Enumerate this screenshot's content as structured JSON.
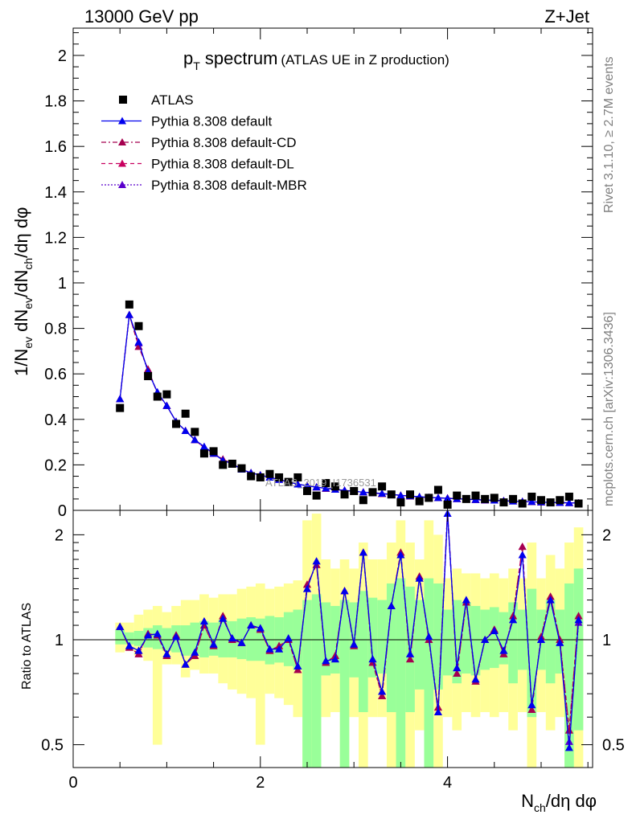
{
  "header": {
    "left": "13000 GeV pp",
    "right": "Z+Jet"
  },
  "side_labels": {
    "rivet": "Rivet 3.1.10, ≥ 2.7M events",
    "mcplots": "mcplots.cern.ch [arXiv:1306.3436]"
  },
  "watermark": "ATLAS_2019_I1736531",
  "chart_data": [
    {
      "type": "scatter",
      "title_main": "p",
      "title_sub": "T",
      "title_rest": " spectrum",
      "title_paren": "(ATLAS UE in Z production)",
      "ylabel": "1/N_ev dN_ev/dN_ch/dη dφ",
      "xlim": [
        0,
        5.55
      ],
      "ylim": [
        0,
        2.12
      ],
      "y_ticks": [
        0,
        0.2,
        0.4,
        0.6,
        0.8,
        1,
        1.2,
        1.4,
        1.6,
        1.8,
        2
      ],
      "y_tick_labels": [
        "0",
        "0.2",
        "0.4",
        "0.6",
        "0.8",
        "1",
        "1.2",
        "1.4",
        "1.6",
        "1.8",
        "2"
      ],
      "legend_position": "top-left",
      "legend": [
        {
          "label": "ATLAS",
          "style": "data"
        },
        {
          "label": "Pythia 8.308 default",
          "style": "solid",
          "color": "#0000ee"
        },
        {
          "label": "Pythia 8.308 default-CD",
          "style": "dashdot",
          "color": "#a5004f"
        },
        {
          "label": "Pythia 8.308 default-DL",
          "style": "dashed",
          "color": "#c8005f"
        },
        {
          "label": "Pythia 8.308 default-MBR",
          "style": "dotted",
          "color": "#5a00cc"
        }
      ],
      "x": [
        0.5,
        0.6,
        0.7,
        0.8,
        0.9,
        1.0,
        1.1,
        1.2,
        1.3,
        1.4,
        1.5,
        1.6,
        1.7,
        1.8,
        1.9,
        2.0,
        2.1,
        2.2,
        2.3,
        2.4,
        2.5,
        2.6,
        2.7,
        2.8,
        2.9,
        3.0,
        3.1,
        3.2,
        3.3,
        3.4,
        3.5,
        3.6,
        3.7,
        3.8,
        3.9,
        4.0,
        4.1,
        4.2,
        4.3,
        4.4,
        4.5,
        4.6,
        4.7,
        4.8,
        4.9,
        5.0,
        5.1,
        5.2,
        5.3,
        5.4
      ],
      "data_values": [
        0.45,
        0.905,
        0.81,
        0.59,
        0.5,
        0.51,
        0.38,
        0.425,
        0.345,
        0.25,
        0.26,
        0.2,
        0.205,
        0.185,
        0.15,
        0.145,
        0.16,
        0.145,
        0.125,
        0.145,
        0.085,
        0.065,
        0.12,
        0.105,
        0.07,
        0.085,
        0.045,
        0.08,
        0.105,
        0.07,
        0.035,
        0.07,
        0.04,
        0.055,
        0.09,
        0.025,
        0.065,
        0.05,
        0.065,
        0.05,
        0.055,
        0.035,
        0.05,
        0.03,
        0.06,
        0.045,
        0.035,
        0.045,
        0.06,
        0.03
      ],
      "series": [
        {
          "name": "Pythia 8.308 default",
          "values": [
            0.49,
            0.86,
            0.74,
            0.61,
            0.52,
            0.46,
            0.39,
            0.35,
            0.31,
            0.28,
            0.25,
            0.22,
            0.205,
            0.18,
            0.165,
            0.155,
            0.145,
            0.135,
            0.125,
            0.115,
            0.108,
            0.102,
            0.097,
            0.092,
            0.088,
            0.084,
            0.08,
            0.077,
            0.074,
            0.07,
            0.066,
            0.063,
            0.06,
            0.057,
            0.055,
            0.053,
            0.051,
            0.049,
            0.047,
            0.045,
            0.044,
            0.042,
            0.04,
            0.039,
            0.038,
            0.036,
            0.035,
            0.034,
            0.033,
            0.032
          ]
        },
        {
          "name": "Pythia 8.308 default-CD",
          "values": [
            0.49,
            0.86,
            0.72,
            0.62,
            0.515,
            0.46,
            0.39,
            0.35,
            0.31,
            0.275,
            0.25,
            0.225,
            0.205,
            0.18,
            0.165,
            0.155,
            0.145,
            0.136,
            0.124,
            0.115,
            0.109,
            0.102,
            0.096,
            0.092,
            0.088,
            0.083,
            0.08,
            0.076,
            0.073,
            0.07,
            0.066,
            0.062,
            0.059,
            0.056,
            0.055,
            0.054,
            0.051,
            0.049,
            0.047,
            0.045,
            0.044,
            0.042,
            0.041,
            0.039,
            0.037,
            0.036,
            0.035,
            0.034,
            0.033,
            0.032
          ]
        },
        {
          "name": "Pythia 8.308 default-DL",
          "values": [
            0.49,
            0.86,
            0.72,
            0.62,
            0.515,
            0.46,
            0.39,
            0.35,
            0.31,
            0.275,
            0.25,
            0.225,
            0.205,
            0.18,
            0.165,
            0.155,
            0.145,
            0.136,
            0.124,
            0.115,
            0.109,
            0.102,
            0.096,
            0.092,
            0.088,
            0.083,
            0.08,
            0.076,
            0.073,
            0.07,
            0.066,
            0.062,
            0.059,
            0.056,
            0.055,
            0.054,
            0.051,
            0.049,
            0.047,
            0.045,
            0.044,
            0.042,
            0.041,
            0.039,
            0.037,
            0.036,
            0.035,
            0.034,
            0.033,
            0.032
          ]
        },
        {
          "name": "Pythia 8.308 default-MBR",
          "values": [
            0.49,
            0.86,
            0.735,
            0.61,
            0.52,
            0.46,
            0.39,
            0.35,
            0.31,
            0.28,
            0.25,
            0.222,
            0.205,
            0.18,
            0.165,
            0.155,
            0.145,
            0.135,
            0.125,
            0.115,
            0.108,
            0.102,
            0.097,
            0.092,
            0.088,
            0.084,
            0.08,
            0.077,
            0.074,
            0.07,
            0.066,
            0.063,
            0.06,
            0.057,
            0.055,
            0.053,
            0.051,
            0.049,
            0.047,
            0.045,
            0.044,
            0.042,
            0.04,
            0.039,
            0.038,
            0.036,
            0.035,
            0.034,
            0.033,
            0.032
          ]
        }
      ]
    },
    {
      "type": "line",
      "ylabel": "Ratio to ATLAS",
      "xlabel": "N_ch/dη dφ",
      "y_scale": "log",
      "xlim": [
        0,
        5.55
      ],
      "ylim": [
        0.43,
        2.35
      ],
      "x_ticks": [
        0,
        2,
        4
      ],
      "x_tick_labels": [
        "0",
        "2",
        "4"
      ],
      "y_ticks": [
        0.5,
        1,
        2
      ],
      "y_tick_labels": [
        "0.5",
        "1",
        "2"
      ],
      "x": [
        0.5,
        0.6,
        0.7,
        0.8,
        0.9,
        1.0,
        1.1,
        1.2,
        1.3,
        1.4,
        1.5,
        1.6,
        1.7,
        1.8,
        1.9,
        2.0,
        2.1,
        2.2,
        2.3,
        2.4,
        2.5,
        2.6,
        2.7,
        2.8,
        2.9,
        3.0,
        3.1,
        3.2,
        3.3,
        3.4,
        3.5,
        3.6,
        3.7,
        3.8,
        3.9,
        4.0,
        4.1,
        4.2,
        4.3,
        4.4,
        4.5,
        4.6,
        4.7,
        4.8,
        4.9,
        5.0,
        5.1,
        5.2,
        5.3,
        5.4
      ],
      "band_green": [
        [
          0.97,
          1.07
        ],
        [
          0.97,
          1.05
        ],
        [
          0.96,
          1.06
        ],
        [
          0.95,
          1.08
        ],
        [
          0.94,
          1.1
        ],
        [
          0.93,
          1.08
        ],
        [
          0.92,
          1.1
        ],
        [
          0.9,
          1.1
        ],
        [
          0.91,
          1.12
        ],
        [
          0.89,
          1.13
        ],
        [
          0.9,
          1.12
        ],
        [
          0.89,
          1.14
        ],
        [
          0.89,
          1.13
        ],
        [
          0.88,
          1.15
        ],
        [
          0.87,
          1.16
        ],
        [
          0.87,
          1.15
        ],
        [
          0.85,
          1.17
        ],
        [
          0.86,
          1.16
        ],
        [
          0.84,
          1.2
        ],
        [
          0.82,
          1.22
        ],
        [
          0.42,
          1.3
        ],
        [
          0.42,
          1.35
        ],
        [
          0.79,
          1.28
        ],
        [
          0.8,
          1.25
        ],
        [
          0.42,
          1.3
        ],
        [
          0.78,
          1.28
        ],
        [
          0.62,
          1.38
        ],
        [
          0.78,
          1.32
        ],
        [
          0.8,
          1.3
        ],
        [
          0.62,
          1.45
        ],
        [
          0.42,
          1.5
        ],
        [
          0.62,
          1.42
        ],
        [
          0.72,
          1.3
        ],
        [
          0.42,
          1.5
        ],
        [
          0.72,
          1.45
        ],
        [
          0.79,
          1.22
        ],
        [
          0.75,
          1.3
        ],
        [
          0.8,
          1.28
        ],
        [
          0.79,
          1.25
        ],
        [
          0.82,
          1.22
        ],
        [
          0.83,
          1.24
        ],
        [
          0.85,
          1.2
        ],
        [
          0.75,
          1.28
        ],
        [
          0.82,
          1.22
        ],
        [
          0.6,
          1.4
        ],
        [
          0.82,
          1.22
        ],
        [
          0.75,
          1.3
        ],
        [
          0.8,
          1.22
        ],
        [
          0.42,
          1.45
        ],
        [
          0.55,
          1.6
        ]
      ],
      "band_yellow": [
        [
          0.92,
          1.12
        ],
        [
          0.93,
          1.12
        ],
        [
          0.9,
          1.18
        ],
        [
          0.87,
          1.22
        ],
        [
          0.5,
          1.25
        ],
        [
          0.85,
          1.2
        ],
        [
          0.85,
          1.25
        ],
        [
          0.78,
          1.3
        ],
        [
          0.82,
          1.3
        ],
        [
          0.8,
          1.35
        ],
        [
          0.8,
          1.32
        ],
        [
          0.75,
          1.35
        ],
        [
          0.72,
          1.35
        ],
        [
          0.7,
          1.4
        ],
        [
          0.68,
          1.42
        ],
        [
          0.5,
          1.45
        ],
        [
          0.7,
          1.4
        ],
        [
          0.68,
          1.42
        ],
        [
          0.65,
          1.45
        ],
        [
          0.6,
          1.48
        ],
        [
          0.42,
          2.2
        ],
        [
          0.42,
          2.3
        ],
        [
          0.6,
          1.7
        ],
        [
          0.62,
          1.6
        ],
        [
          0.42,
          1.7
        ],
        [
          0.6,
          1.6
        ],
        [
          0.42,
          1.9
        ],
        [
          0.6,
          1.7
        ],
        [
          0.6,
          1.7
        ],
        [
          0.42,
          1.9
        ],
        [
          0.42,
          2.2
        ],
        [
          0.42,
          1.9
        ],
        [
          0.55,
          1.7
        ],
        [
          0.42,
          2.2
        ],
        [
          0.42,
          2.0
        ],
        [
          0.6,
          1.5
        ],
        [
          0.55,
          1.6
        ],
        [
          0.62,
          1.55
        ],
        [
          0.6,
          1.55
        ],
        [
          0.62,
          1.5
        ],
        [
          0.6,
          1.55
        ],
        [
          0.62,
          1.5
        ],
        [
          0.55,
          1.6
        ],
        [
          0.62,
          1.5
        ],
        [
          0.42,
          1.9
        ],
        [
          0.62,
          1.5
        ],
        [
          0.55,
          1.75
        ],
        [
          0.6,
          1.6
        ],
        [
          0.42,
          1.9
        ],
        [
          0.42,
          2.1
        ]
      ],
      "series": [
        {
          "name": "Pythia 8.308 default",
          "values": [
            1.09,
            0.96,
            0.93,
            1.03,
            1.04,
            0.91,
            1.02,
            0.85,
            0.92,
            1.13,
            0.97,
            1.15,
            1.01,
            0.98,
            1.1,
            1.08,
            0.94,
            0.94,
            1.01,
            0.84,
            1.4,
            1.68,
            0.87,
            0.88,
            1.38,
            0.97,
            1.78,
            0.88,
            0.71,
            1.25,
            1.75,
            0.91,
            1.5,
            1.02,
            0.62,
            2.3,
            0.83,
            1.3,
            0.77,
            1.0,
            1.06,
            0.93,
            1.14,
            1.75,
            0.65,
            1.0,
            1.3,
            0.98,
            0.49,
            1.14
          ]
        },
        {
          "name": "Pythia 8.308 default-CD",
          "values": [
            1.09,
            0.95,
            0.91,
            1.04,
            1.03,
            0.9,
            1.03,
            0.85,
            0.9,
            1.1,
            0.96,
            1.17,
            1.0,
            0.98,
            1.1,
            1.07,
            0.93,
            0.96,
            1.0,
            0.82,
            1.44,
            1.64,
            0.86,
            0.9,
            1.38,
            0.96,
            1.78,
            0.86,
            0.69,
            1.25,
            1.78,
            0.88,
            1.52,
            1.0,
            0.64,
            2.36,
            0.8,
            1.28,
            0.76,
            1.0,
            1.07,
            0.91,
            1.17,
            1.85,
            0.63,
            1.02,
            1.33,
            1.0,
            0.55,
            1.17
          ]
        },
        {
          "name": "Pythia 8.308 default-DL",
          "values": [
            1.09,
            0.95,
            0.91,
            1.04,
            1.03,
            0.9,
            1.03,
            0.85,
            0.9,
            1.1,
            0.96,
            1.17,
            1.0,
            0.98,
            1.1,
            1.07,
            0.93,
            0.96,
            1.0,
            0.82,
            1.44,
            1.64,
            0.86,
            0.9,
            1.38,
            0.96,
            1.78,
            0.86,
            0.69,
            1.25,
            1.78,
            0.88,
            1.52,
            1.0,
            0.64,
            2.36,
            0.8,
            1.28,
            0.76,
            1.0,
            1.07,
            0.91,
            1.17,
            1.85,
            0.63,
            1.02,
            1.33,
            1.0,
            0.55,
            1.17
          ]
        },
        {
          "name": "Pythia 8.308 default-MBR",
          "values": [
            1.09,
            0.96,
            0.93,
            1.03,
            1.04,
            0.91,
            1.02,
            0.85,
            0.92,
            1.13,
            0.97,
            1.15,
            1.01,
            0.98,
            1.1,
            1.08,
            0.94,
            0.94,
            1.01,
            0.84,
            1.4,
            1.68,
            0.87,
            0.88,
            1.38,
            0.97,
            1.78,
            0.88,
            0.71,
            1.25,
            1.75,
            0.91,
            1.5,
            1.02,
            0.62,
            2.3,
            0.83,
            1.3,
            0.77,
            1.0,
            1.06,
            0.93,
            1.14,
            1.75,
            0.65,
            1.0,
            1.3,
            0.98,
            0.51,
            1.12
          ]
        }
      ]
    }
  ],
  "colors": {
    "data_marker": "#000000",
    "band_green": "#99ff99",
    "band_yellow": "#ffff99",
    "default": "#0000ee",
    "cd": "#a5004f",
    "dl": "#c8005f",
    "mbr": "#5a00cc"
  }
}
